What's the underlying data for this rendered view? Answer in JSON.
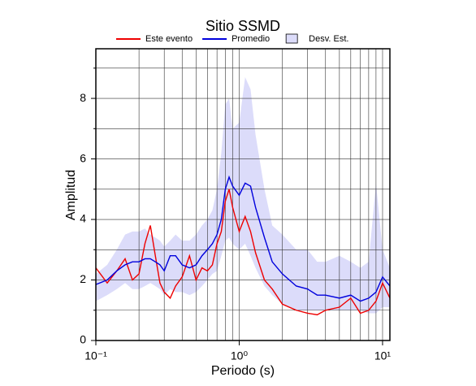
{
  "chart_data": {
    "type": "line",
    "title": "Sitio SSMD",
    "xlabel": "Periodo (s)",
    "ylabel": "Amplitud",
    "xscale": "log",
    "grid": true,
    "xlim": [
      0.1,
      11.25
    ],
    "ylim": [
      0,
      9.64
    ],
    "xticks": [
      {
        "value": 0.1,
        "label": "10⁻¹"
      },
      {
        "value": 1,
        "label": "10⁰"
      },
      {
        "value": 10,
        "label": "10¹"
      }
    ],
    "xminor": [
      0.2,
      0.3,
      0.4,
      0.5,
      0.6,
      0.7,
      0.8,
      0.9,
      2,
      3,
      4,
      5,
      6,
      7,
      8,
      9
    ],
    "yticks": [
      0,
      2,
      4,
      6,
      8
    ],
    "yminor": [
      1,
      3,
      5,
      7,
      9
    ],
    "x": [
      0.1,
      0.12,
      0.14,
      0.16,
      0.18,
      0.2,
      0.22,
      0.24,
      0.26,
      0.28,
      0.3,
      0.33,
      0.36,
      0.4,
      0.45,
      0.5,
      0.55,
      0.6,
      0.65,
      0.7,
      0.75,
      0.8,
      0.85,
      0.9,
      1.0,
      1.1,
      1.2,
      1.3,
      1.5,
      1.7,
      2.0,
      2.5,
      3,
      3.5,
      4,
      5,
      6,
      7,
      8,
      9,
      10,
      11.25
    ],
    "series": [
      {
        "name": "Este evento",
        "color": "#ee0000",
        "values": [
          2.4,
          1.9,
          2.3,
          2.7,
          2.0,
          2.2,
          3.2,
          3.8,
          2.8,
          1.9,
          1.6,
          1.4,
          1.8,
          2.1,
          2.8,
          2.0,
          2.4,
          2.3,
          2.5,
          3.2,
          3.6,
          4.6,
          5.0,
          4.4,
          3.6,
          4.1,
          3.6,
          2.9,
          2.0,
          1.7,
          1.2,
          1.0,
          0.9,
          0.85,
          1.0,
          1.1,
          1.4,
          0.9,
          1.0,
          1.3,
          1.9,
          1.4
        ]
      },
      {
        "name": "Promedio",
        "color": "#0000dd",
        "values": [
          1.85,
          2.0,
          2.3,
          2.5,
          2.6,
          2.6,
          2.7,
          2.7,
          2.6,
          2.5,
          2.3,
          2.8,
          2.8,
          2.5,
          2.4,
          2.5,
          2.8,
          3.0,
          3.2,
          3.5,
          4.0,
          5.0,
          5.4,
          5.1,
          4.8,
          5.2,
          5.1,
          4.4,
          3.4,
          2.6,
          2.2,
          1.8,
          1.7,
          1.5,
          1.5,
          1.4,
          1.5,
          1.3,
          1.4,
          1.6,
          2.1,
          1.8
        ]
      },
      {
        "name": "Desv. Est.",
        "color": "#dcdcfa",
        "band": true,
        "upper": [
          2.2,
          2.5,
          3.0,
          3.5,
          3.6,
          3.6,
          3.7,
          3.5,
          3.4,
          3.3,
          3.1,
          3.3,
          3.5,
          3.3,
          3.3,
          3.5,
          3.8,
          4.0,
          4.3,
          5.0,
          6.2,
          7.8,
          8.0,
          7.0,
          7.2,
          8.7,
          8.3,
          6.8,
          5.0,
          3.8,
          3.5,
          3.0,
          3.0,
          2.6,
          2.6,
          2.8,
          2.6,
          2.4,
          2.6,
          5.2,
          3.0,
          2.4
        ],
        "lower": [
          1.3,
          1.5,
          1.7,
          1.9,
          1.7,
          1.7,
          1.8,
          1.9,
          1.8,
          1.7,
          1.5,
          1.7,
          1.6,
          1.6,
          1.5,
          1.6,
          1.8,
          2.0,
          2.2,
          2.3,
          2.8,
          3.3,
          3.4,
          3.2,
          3.0,
          3.2,
          2.8,
          2.4,
          1.8,
          1.5,
          1.2,
          1.0,
          1.0,
          1.0,
          1.0,
          1.0,
          1.0,
          1.0,
          0.9,
          0.9,
          1.1,
          1.1
        ]
      }
    ]
  }
}
